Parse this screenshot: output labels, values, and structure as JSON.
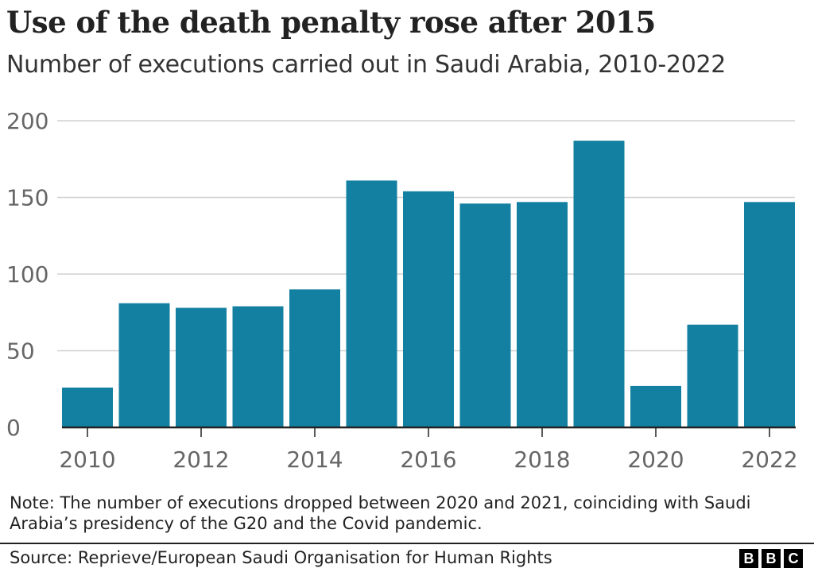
{
  "title": "Use of the death penalty rose after 2015",
  "subtitle": "Number of executions carried out in Saudi Arabia, 2010-2022",
  "note": "Note: The number of executions dropped between 2020 and 2021, coinciding with Saudi Arabia’s presidency of the G20 and the Covid pandemic.",
  "source": "Source: Reprieve/European Saudi Organisation for Human Rights",
  "logo": [
    "B",
    "B",
    "C"
  ],
  "chart_data": {
    "type": "bar",
    "categories": [
      "2010",
      "2011",
      "2012",
      "2013",
      "2014",
      "2015",
      "2016",
      "2017",
      "2018",
      "2019",
      "2020",
      "2021",
      "2022"
    ],
    "values": [
      26,
      81,
      78,
      79,
      90,
      161,
      154,
      146,
      147,
      187,
      27,
      67,
      147
    ],
    "xticks": [
      "2010",
      "2012",
      "2014",
      "2016",
      "2018",
      "2020",
      "2022"
    ],
    "yticks": [
      "0",
      "50",
      "100",
      "150",
      "200"
    ],
    "ylim": [
      0,
      200
    ],
    "grid": true,
    "bar_color": "#1380A1",
    "xlabel": "",
    "ylabel": ""
  }
}
